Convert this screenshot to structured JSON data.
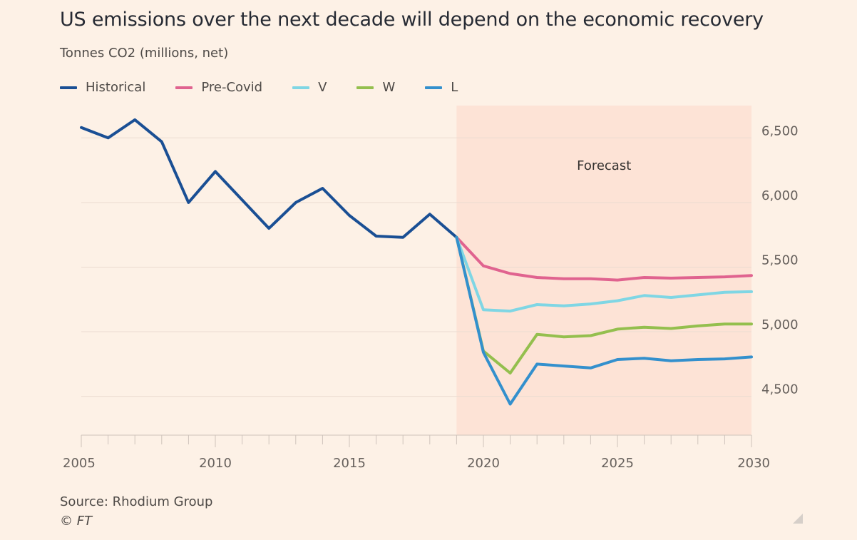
{
  "title": "US emissions over the next decade will depend on the economic recovery",
  "subtitle": "Tonnes CO2 (millions, net)",
  "source": "Source: Rhodium Group",
  "copyright": "© FT",
  "chart_data": {
    "type": "line",
    "title": "US emissions over the next decade will depend on the economic recovery",
    "ylabel": "Tonnes CO2 (millions, net)",
    "xlim": [
      2005,
      2030
    ],
    "ylim": [
      4200,
      6750
    ],
    "x_ticks": [
      2005,
      2010,
      2015,
      2020,
      2025,
      2030
    ],
    "x_tick_labels": [
      "2005",
      "2010",
      "2015",
      "2020",
      "2025",
      "2030"
    ],
    "y_ticks": [
      4500,
      5000,
      5500,
      6000,
      6500
    ],
    "y_tick_labels": [
      "4,500",
      "5,000",
      "5,500",
      "6,000",
      "6,500"
    ],
    "y_axis_side": "right",
    "grid": "horizontal",
    "legend_position": "top-left",
    "forecast_region": {
      "from": 2019,
      "to": 2030,
      "label": "Forecast",
      "color": "#fde3d6"
    },
    "series": [
      {
        "name": "Historical",
        "color": "#1a4f94",
        "x": [
          2005,
          2006,
          2007,
          2008,
          2009,
          2010,
          2011,
          2012,
          2013,
          2014,
          2015,
          2016,
          2017,
          2018,
          2019
        ],
        "y": [
          6580,
          6500,
          6640,
          6470,
          6000,
          6240,
          6020,
          5800,
          6000,
          6110,
          5900,
          5740,
          5730,
          5910,
          5730
        ]
      },
      {
        "name": "Pre-Covid",
        "color": "#e0638f",
        "x": [
          2019,
          2020,
          2021,
          2022,
          2023,
          2024,
          2025,
          2026,
          2027,
          2028,
          2029,
          2030
        ],
        "y": [
          5730,
          5510,
          5450,
          5420,
          5410,
          5410,
          5400,
          5420,
          5415,
          5420,
          5425,
          5435
        ]
      },
      {
        "name": "V",
        "color": "#7fd6e4",
        "x": [
          2019,
          2020,
          2021,
          2022,
          2023,
          2024,
          2025,
          2026,
          2027,
          2028,
          2029,
          2030
        ],
        "y": [
          5730,
          5170,
          5160,
          5210,
          5200,
          5215,
          5240,
          5280,
          5265,
          5285,
          5305,
          5310
        ]
      },
      {
        "name": "W",
        "color": "#94bf4e",
        "x": [
          2019,
          2020,
          2021,
          2022,
          2023,
          2024,
          2025,
          2026,
          2027,
          2028,
          2029,
          2030
        ],
        "y": [
          5730,
          4850,
          4680,
          4980,
          4960,
          4970,
          5020,
          5035,
          5025,
          5045,
          5060,
          5060
        ]
      },
      {
        "name": "L",
        "color": "#3390cd",
        "x": [
          2019,
          2020,
          2021,
          2022,
          2023,
          2024,
          2025,
          2026,
          2027,
          2028,
          2029,
          2030
        ],
        "y": [
          5730,
          4840,
          4440,
          4750,
          4735,
          4720,
          4785,
          4795,
          4775,
          4785,
          4790,
          4805
        ]
      }
    ]
  }
}
